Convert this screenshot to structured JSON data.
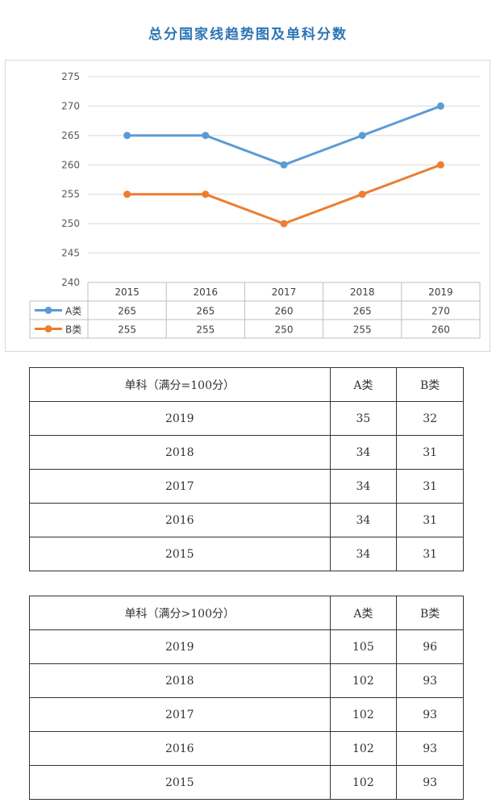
{
  "title": "总分国家线趋势图及单科分数",
  "chart_data": {
    "type": "line",
    "categories": [
      "2015",
      "2016",
      "2017",
      "2018",
      "2019"
    ],
    "series": [
      {
        "name": "A类",
        "values": [
          265,
          265,
          260,
          265,
          270
        ],
        "color": "#5b9bd5"
      },
      {
        "name": "B类",
        "values": [
          255,
          255,
          250,
          255,
          260
        ],
        "color": "#ed7d31"
      }
    ],
    "ylim": [
      240,
      275
    ],
    "yticks": [
      240,
      245,
      250,
      255,
      260,
      265,
      270,
      275
    ],
    "grid": true,
    "data_table": true
  },
  "table1": {
    "header": [
      "单科（满分=100分）",
      "A类",
      "B类"
    ],
    "rows": [
      [
        "2019",
        "35",
        "32"
      ],
      [
        "2018",
        "34",
        "31"
      ],
      [
        "2017",
        "34",
        "31"
      ],
      [
        "2016",
        "34",
        "31"
      ],
      [
        "2015",
        "34",
        "31"
      ]
    ]
  },
  "table2": {
    "header": [
      "单科（满分>100分）",
      "A类",
      "B类"
    ],
    "rows": [
      [
        "2019",
        "105",
        "96"
      ],
      [
        "2018",
        "102",
        "93"
      ],
      [
        "2017",
        "102",
        "93"
      ],
      [
        "2016",
        "102",
        "93"
      ],
      [
        "2015",
        "102",
        "93"
      ]
    ]
  }
}
